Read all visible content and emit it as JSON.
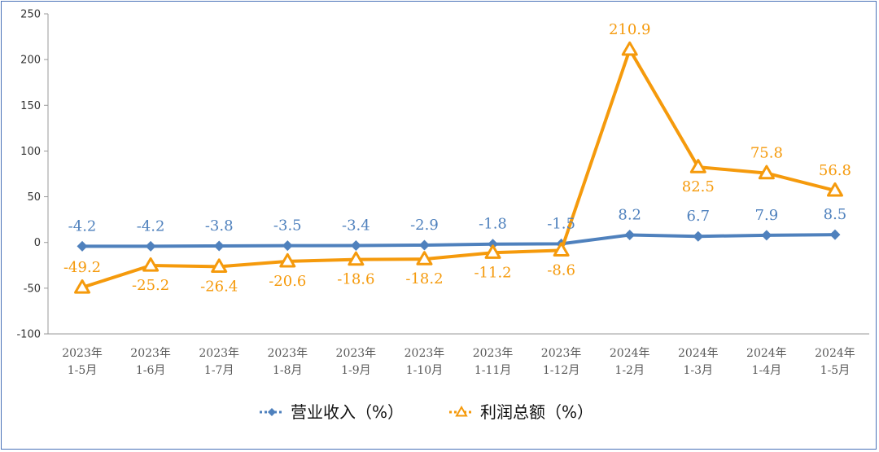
{
  "chart_data": {
    "type": "line",
    "title": "",
    "xlabel": "",
    "ylabel": "",
    "ylim": [
      -100,
      250
    ],
    "yticks": [
      -100,
      -50,
      0,
      50,
      100,
      150,
      200,
      250
    ],
    "grid": false,
    "legend_position": "bottom",
    "categories": [
      [
        "2023年",
        "1-5月"
      ],
      [
        "2023年",
        "1-6月"
      ],
      [
        "2023年",
        "1-7月"
      ],
      [
        "2023年",
        "1-8月"
      ],
      [
        "2023年",
        "1-9月"
      ],
      [
        "2023年",
        "1-10月"
      ],
      [
        "2023年",
        "1-11月"
      ],
      [
        "2023年",
        "1-12月"
      ],
      [
        "2024年",
        "1-2月"
      ],
      [
        "2024年",
        "1-3月"
      ],
      [
        "2024年",
        "1-4月"
      ],
      [
        "2024年",
        "1-5月"
      ]
    ],
    "series": [
      {
        "name": "营业收入（%）",
        "color": "#4f81bd",
        "marker": "diamond",
        "values": [
          -4.2,
          -4.2,
          -3.8,
          -3.5,
          -3.4,
          -2.9,
          -1.8,
          -1.5,
          8.2,
          6.7,
          7.9,
          8.5
        ],
        "labels": [
          "-4.2",
          "-4.2",
          "-3.8",
          "-3.5",
          "-3.4",
          "-2.9",
          "-1.8",
          "-1.5",
          "8.2",
          "6.7",
          "7.9",
          "8.5"
        ]
      },
      {
        "name": "利润总额（%）",
        "color": "#f59a0c",
        "marker": "triangle",
        "values": [
          -49.2,
          -25.2,
          -26.4,
          -20.6,
          -18.6,
          -18.2,
          -11.2,
          -8.6,
          210.9,
          82.5,
          75.8,
          56.8
        ],
        "labels": [
          "-49.2",
          "-25.2",
          "-26.4",
          "-20.6",
          "-18.6",
          "-18.2",
          "-11.2",
          "-8.6",
          "210.9",
          "82.5",
          "75.8",
          "56.8"
        ]
      }
    ]
  }
}
